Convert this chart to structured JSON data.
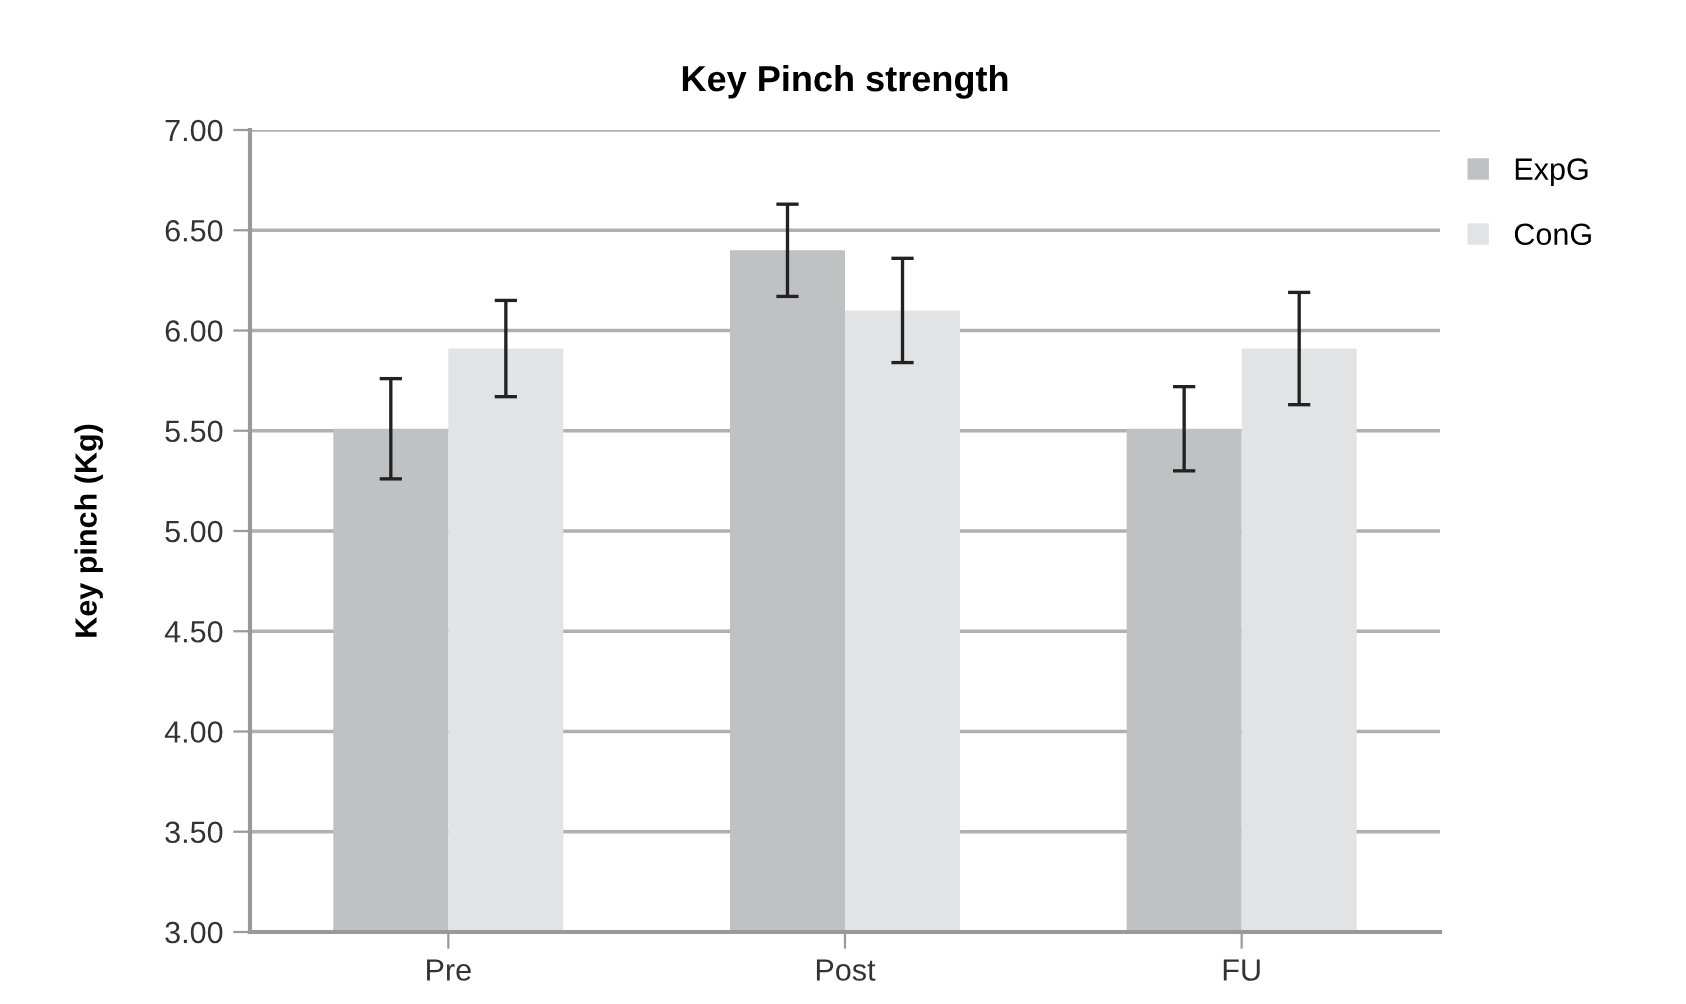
{
  "chart_data": {
    "type": "bar",
    "title": "Key Pinch strength",
    "ylabel": "Key pinch (Kg)",
    "categories": [
      "Pre",
      "Post",
      "FU"
    ],
    "series": [
      {
        "name": "ExpG",
        "color": "#c0c1c3",
        "values": [
          5.51,
          6.4,
          5.51
        ],
        "errors": [
          0.25,
          0.23,
          0.21
        ]
      },
      {
        "name": "ConG",
        "color": "#e2e3e5",
        "values": [
          5.91,
          6.1,
          5.91
        ],
        "errors": [
          0.24,
          0.26,
          0.28
        ]
      }
    ],
    "ylim": [
      3.0,
      7.0
    ],
    "yticks": [
      {
        "value": 3.0,
        "label": "3.00"
      },
      {
        "value": 3.5,
        "label": "3.50"
      },
      {
        "value": 4.0,
        "label": "4.00"
      },
      {
        "value": 4.5,
        "label": "4.50"
      },
      {
        "value": 5.0,
        "label": "5.00"
      },
      {
        "value": 5.5,
        "label": "5.50"
      },
      {
        "value": 6.0,
        "label": "6.00"
      },
      {
        "value": 6.5,
        "label": "6.50"
      },
      {
        "value": 7.0,
        "label": "7.00"
      }
    ],
    "grid": "y",
    "legend": "top right"
  }
}
